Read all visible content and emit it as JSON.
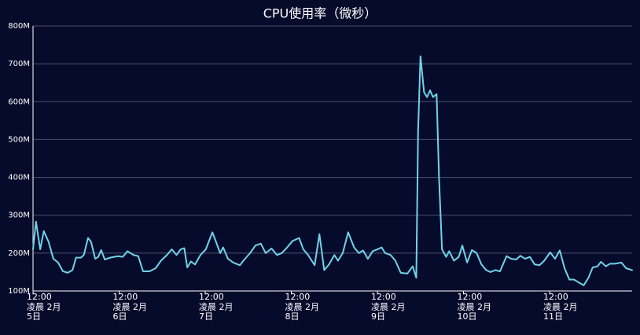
{
  "chart_data": {
    "type": "line",
    "title": "CPU使用率（微秒）",
    "color": "#6fd3ea",
    "grid": true,
    "ylim": [
      100000000,
      800000000
    ],
    "yticks": [
      {
        "value": 100000000,
        "label": "100M"
      },
      {
        "value": 200000000,
        "label": "200M"
      },
      {
        "value": 300000000,
        "label": "300M"
      },
      {
        "value": 400000000,
        "label": "400M"
      },
      {
        "value": 500000000,
        "label": "500M"
      },
      {
        "value": 600000000,
        "label": "600M"
      },
      {
        "value": 700000000,
        "label": "700M"
      },
      {
        "value": 800000000,
        "label": "800M"
      }
    ],
    "xlim": [
      "02-05 12:00",
      "02-12 11:00"
    ],
    "xticks": [
      {
        "value": "02-05 12:00",
        "label": "12:00\n凌晨 2月\n5日"
      },
      {
        "value": "02-06 12:00",
        "label": "12:00\n凌晨 2月\n6日"
      },
      {
        "value": "02-07 12:00",
        "label": "12:00\n凌晨 2月\n7日"
      },
      {
        "value": "02-08 12:00",
        "label": "12:00\n凌晨 2月\n8日"
      },
      {
        "value": "02-09 12:00",
        "label": "12:00\n凌晨 2月\n9日"
      },
      {
        "value": "02-10 12:00",
        "label": "12:00\n凌晨 2月\n10日"
      },
      {
        "value": "02-11 12:00",
        "label": "12:00\n凌晨 2月\n11日"
      }
    ],
    "x": [
      "02-05 12:00",
      "02-05 12:50",
      "02-05 14:00",
      "02-05 15:00",
      "02-05 16:20",
      "02-05 17:40",
      "02-05 19:00",
      "02-05 20:20",
      "02-05 21:40",
      "02-05 23:00",
      "02-06 00:00",
      "02-06 01:20",
      "02-06 02:10",
      "02-06 03:20",
      "02-06 04:10",
      "02-06 05:20",
      "02-06 06:10",
      "02-06 07:00",
      "02-06 08:00",
      "02-06 09:30",
      "02-06 11:40",
      "02-06 13:00",
      "02-06 14:20",
      "02-06 16:00",
      "02-06 17:20",
      "02-06 18:40",
      "02-06 20:30",
      "02-06 22:10",
      "02-06 23:40",
      "02-07 01:20",
      "02-07 02:40",
      "02-07 04:00",
      "02-07 05:10",
      "02-07 06:10",
      "02-07 07:00",
      "02-07 08:00",
      "02-07 09:10",
      "02-07 10:40",
      "02-07 12:10",
      "02-07 14:00",
      "02-07 15:00",
      "02-07 16:10",
      "02-07 17:00",
      "02-07 18:20",
      "02-07 19:50",
      "02-07 21:40",
      "02-07 22:50",
      "02-08 00:30",
      "02-08 02:00",
      "02-08 03:30",
      "02-08 04:50",
      "02-08 06:30",
      "02-08 08:00",
      "02-08 09:20",
      "02-08 10:50",
      "02-08 12:20",
      "02-08 14:10",
      "02-08 15:20",
      "02-08 16:40",
      "02-08 18:30",
      "02-08 19:50",
      "02-08 21:10",
      "02-08 22:30",
      "02-09 00:00",
      "02-09 01:00",
      "02-09 02:20",
      "02-09 03:50",
      "02-09 05:30",
      "02-09 06:50",
      "02-09 08:00",
      "02-09 09:20",
      "02-09 10:40",
      "02-09 12:00",
      "02-09 13:10",
      "02-09 14:10",
      "02-09 15:40",
      "02-09 17:00",
      "02-09 18:30",
      "02-09 20:20",
      "02-09 21:50",
      "02-09 22:50",
      "02-09 23:20",
      "02-10 00:00",
      "02-10 01:00",
      "02-10 01:50",
      "02-10 02:40",
      "02-10 03:30",
      "02-10 04:30",
      "02-10 05:10",
      "02-10 06:00",
      "02-10 07:10",
      "02-10 08:00",
      "02-10 09:20",
      "02-10 10:40",
      "02-10 11:40",
      "02-10 13:00",
      "02-10 14:20",
      "02-10 15:40",
      "02-10 17:00",
      "02-10 18:20",
      "02-10 19:30",
      "02-10 20:50",
      "02-10 22:10",
      "02-11 00:00",
      "02-11 01:20",
      "02-11 02:40",
      "02-11 03:50",
      "02-11 05:10",
      "02-11 06:30",
      "02-11 07:50",
      "02-11 09:10",
      "02-11 10:30",
      "02-11 12:10",
      "02-11 13:30",
      "02-11 14:50",
      "02-11 16:10",
      "02-11 17:30",
      "02-11 18:50",
      "02-11 20:10",
      "02-11 21:30",
      "02-11 22:50",
      "02-12 00:00",
      "02-12 01:20",
      "02-12 02:20",
      "02-12 03:40",
      "02-12 04:50",
      "02-12 06:10",
      "02-12 08:00",
      "02-12 09:20",
      "02-12 11:00"
    ],
    "values": [
      210000000,
      283000000,
      210000000,
      258000000,
      230000000,
      185000000,
      175000000,
      152000000,
      148000000,
      155000000,
      188000000,
      188000000,
      195000000,
      240000000,
      230000000,
      185000000,
      190000000,
      208000000,
      183000000,
      188000000,
      192000000,
      190000000,
      205000000,
      195000000,
      192000000,
      152000000,
      152000000,
      160000000,
      180000000,
      195000000,
      210000000,
      195000000,
      210000000,
      213000000,
      162000000,
      178000000,
      170000000,
      195000000,
      210000000,
      255000000,
      230000000,
      200000000,
      215000000,
      185000000,
      175000000,
      168000000,
      182000000,
      200000000,
      220000000,
      225000000,
      200000000,
      212000000,
      195000000,
      200000000,
      215000000,
      232000000,
      240000000,
      210000000,
      195000000,
      168000000,
      250000000,
      155000000,
      170000000,
      195000000,
      180000000,
      200000000,
      255000000,
      215000000,
      200000000,
      207000000,
      185000000,
      205000000,
      210000000,
      215000000,
      200000000,
      195000000,
      180000000,
      148000000,
      146000000,
      165000000,
      135000000,
      520000000,
      720000000,
      625000000,
      612000000,
      630000000,
      612000000,
      620000000,
      400000000,
      210000000,
      190000000,
      205000000,
      180000000,
      190000000,
      220000000,
      175000000,
      208000000,
      200000000,
      170000000,
      155000000,
      150000000,
      155000000,
      152000000,
      192000000,
      185000000,
      183000000,
      193000000,
      185000000,
      190000000,
      170000000,
      168000000,
      180000000,
      202000000,
      185000000,
      207000000,
      160000000,
      130000000,
      130000000,
      122000000,
      115000000,
      135000000,
      162000000,
      165000000,
      177000000,
      165000000,
      172000000,
      172000000,
      175000000,
      160000000,
      155000000
    ]
  }
}
